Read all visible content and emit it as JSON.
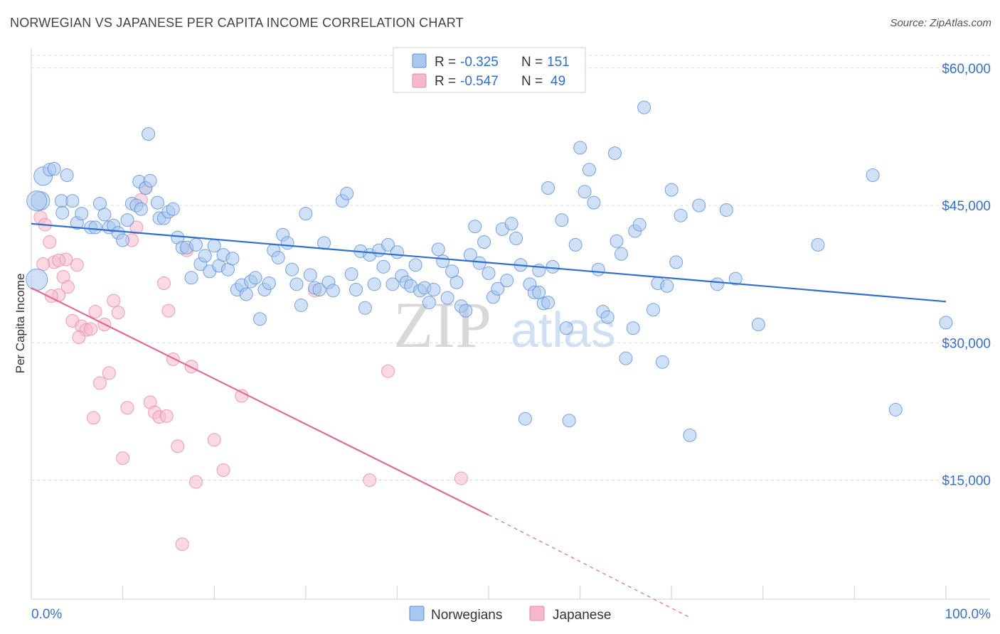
{
  "title": "NORWEGIAN VS JAPANESE PER CAPITA INCOME CORRELATION CHART",
  "source": "Source: ZipAtlas.com",
  "watermark": {
    "zip": "ZIP",
    "atlas": "atlas"
  },
  "legend": {
    "r_label": "R =",
    "n_label": "N =",
    "rows": [
      {
        "r": "-0.325",
        "n": "151",
        "color": "#a9c8f0",
        "stroke": "#5b8fd6"
      },
      {
        "r": "-0.547",
        "n": "49",
        "color": "#f6b9cc",
        "stroke": "#e68aa8"
      }
    ]
  },
  "chart_data": {
    "type": "scatter",
    "title": "NORWEGIAN VS JAPANESE PER CAPITA INCOME CORRELATION CHART",
    "xlabel": "",
    "ylabel": "Per Capita Income",
    "xlim": [
      0,
      100
    ],
    "ylim": [
      2000,
      62000
    ],
    "x_tick_labels": {
      "left": "0.0%",
      "right": "100.0%"
    },
    "y_ticks": [
      {
        "value": 15000,
        "label": "$15,000"
      },
      {
        "value": 30000,
        "label": "$30,000"
      },
      {
        "value": 45000,
        "label": "$45,000"
      },
      {
        "value": 60000,
        "label": "$60,000"
      }
    ],
    "series": [
      {
        "name": "Norwegians",
        "color": "#a9c8f0",
        "stroke": "#5b8fd6",
        "trend": {
          "x": [
            0,
            100
          ],
          "y": [
            43000,
            34500
          ],
          "color": "#2f6fd2"
        },
        "points": [
          [
            1,
            45500
          ],
          [
            1.3,
            48200
          ],
          [
            2,
            48900
          ],
          [
            2.5,
            49000
          ],
          [
            3.3,
            45500
          ],
          [
            3.4,
            44200
          ],
          [
            3.9,
            48300
          ],
          [
            4.5,
            45500
          ],
          [
            5,
            43100
          ],
          [
            5.5,
            44100
          ],
          [
            6.5,
            42600
          ],
          [
            7,
            42600
          ],
          [
            7.5,
            45200
          ],
          [
            8,
            44000
          ],
          [
            8.5,
            42600
          ],
          [
            9,
            42800
          ],
          [
            9.5,
            42000
          ],
          [
            10,
            41200
          ],
          [
            10.5,
            43400
          ],
          [
            11,
            45200
          ],
          [
            11.5,
            45000
          ],
          [
            11.8,
            47600
          ],
          [
            12,
            44600
          ],
          [
            12.5,
            46900
          ],
          [
            12.8,
            52800
          ],
          [
            13,
            47700
          ],
          [
            13.8,
            45300
          ],
          [
            14,
            43600
          ],
          [
            14.5,
            43600
          ],
          [
            15,
            44300
          ],
          [
            15.5,
            44600
          ],
          [
            16,
            41500
          ],
          [
            16.5,
            40400
          ],
          [
            17,
            40400
          ],
          [
            17.5,
            37100
          ],
          [
            18,
            40700
          ],
          [
            18.5,
            38600
          ],
          [
            19,
            39500
          ],
          [
            19.5,
            37800
          ],
          [
            20,
            40600
          ],
          [
            20.5,
            38400
          ],
          [
            21,
            39600
          ],
          [
            21.5,
            38000
          ],
          [
            22,
            39200
          ],
          [
            22.5,
            35800
          ],
          [
            23,
            36300
          ],
          [
            23.5,
            35300
          ],
          [
            24,
            36700
          ],
          [
            24.5,
            37100
          ],
          [
            25,
            32600
          ],
          [
            25.5,
            35800
          ],
          [
            26,
            36500
          ],
          [
            26.5,
            40100
          ],
          [
            27,
            39300
          ],
          [
            27.5,
            41800
          ],
          [
            28,
            40900
          ],
          [
            28.5,
            38000
          ],
          [
            29,
            36400
          ],
          [
            29.5,
            34100
          ],
          [
            30,
            44100
          ],
          [
            30.5,
            37400
          ],
          [
            31,
            36000
          ],
          [
            31.5,
            35800
          ],
          [
            32,
            40900
          ],
          [
            32.5,
            36600
          ],
          [
            33,
            35700
          ],
          [
            34,
            45500
          ],
          [
            34.5,
            46300
          ],
          [
            35,
            37500
          ],
          [
            35.5,
            35800
          ],
          [
            36,
            40000
          ],
          [
            36.5,
            33800
          ],
          [
            37,
            39600
          ],
          [
            37.5,
            36400
          ],
          [
            38,
            40100
          ],
          [
            38.5,
            38300
          ],
          [
            39,
            40700
          ],
          [
            39.5,
            36400
          ],
          [
            40,
            39900
          ],
          [
            40.5,
            37300
          ],
          [
            41,
            36600
          ],
          [
            41.5,
            36200
          ],
          [
            42,
            38500
          ],
          [
            42.5,
            35700
          ],
          [
            43,
            36000
          ],
          [
            43.5,
            34400
          ],
          [
            44,
            35800
          ],
          [
            44.5,
            40200
          ],
          [
            45,
            38900
          ],
          [
            45.5,
            34900
          ],
          [
            46,
            37800
          ],
          [
            46.5,
            36600
          ],
          [
            47,
            34000
          ],
          [
            47.5,
            33500
          ],
          [
            48,
            39600
          ],
          [
            48.5,
            42700
          ],
          [
            49,
            38700
          ],
          [
            49.5,
            41000
          ],
          [
            50,
            37600
          ],
          [
            50.5,
            35000
          ],
          [
            51,
            35900
          ],
          [
            51.5,
            42400
          ],
          [
            52,
            36800
          ],
          [
            52.5,
            43000
          ],
          [
            53,
            41400
          ],
          [
            53.5,
            38500
          ],
          [
            54,
            21700
          ],
          [
            54.5,
            36400
          ],
          [
            55,
            35500
          ],
          [
            55.5,
            37900
          ],
          [
            56,
            34300
          ],
          [
            56.5,
            46900
          ],
          [
            57,
            38300
          ],
          [
            58,
            43400
          ],
          [
            58.5,
            31600
          ],
          [
            59.5,
            40700
          ],
          [
            60,
            51300
          ],
          [
            60.5,
            46500
          ],
          [
            61,
            48900
          ],
          [
            61.5,
            45300
          ],
          [
            62,
            38000
          ],
          [
            62.5,
            33400
          ],
          [
            63,
            32800
          ],
          [
            63.8,
            50700
          ],
          [
            64,
            41100
          ],
          [
            64.5,
            39700
          ],
          [
            65,
            28300
          ],
          [
            65.8,
            31600
          ],
          [
            66,
            42200
          ],
          [
            66.5,
            42900
          ],
          [
            67,
            55700
          ],
          [
            68,
            33600
          ],
          [
            68.5,
            36500
          ],
          [
            69,
            27900
          ],
          [
            69.5,
            36200
          ],
          [
            70,
            46700
          ],
          [
            70.5,
            38800
          ],
          [
            71,
            43900
          ],
          [
            72,
            19900
          ],
          [
            73,
            45000
          ],
          [
            75,
            36400
          ],
          [
            76,
            44500
          ],
          [
            77,
            37000
          ],
          [
            79.5,
            32000
          ],
          [
            86,
            40700
          ],
          [
            92,
            48300
          ],
          [
            94.5,
            22700
          ],
          [
            100,
            32200
          ],
          [
            55.5,
            35500
          ],
          [
            56.5,
            34400
          ],
          [
            58.8,
            21500
          ]
        ]
      },
      {
        "name": "Japanese",
        "color": "#f6b9cc",
        "stroke": "#e68aa8",
        "trend": {
          "x": [
            0,
            50
          ],
          "y": [
            36000,
            11200
          ],
          "dashed_to": {
            "x": 72,
            "y": 0
          },
          "color": "#e06a95"
        },
        "points": [
          [
            1,
            43700
          ],
          [
            1.5,
            42900
          ],
          [
            2,
            41000
          ],
          [
            2.5,
            38800
          ],
          [
            3,
            35200
          ],
          [
            3.5,
            37200
          ],
          [
            4,
            36100
          ],
          [
            4.5,
            32400
          ],
          [
            5,
            38500
          ],
          [
            5.5,
            31800
          ],
          [
            6,
            31400
          ],
          [
            6.5,
            31500
          ],
          [
            7,
            33400
          ],
          [
            7.5,
            25600
          ],
          [
            8,
            32000
          ],
          [
            8.5,
            26700
          ],
          [
            9,
            34600
          ],
          [
            9.5,
            33300
          ],
          [
            10,
            17400
          ],
          [
            10.5,
            22900
          ],
          [
            11,
            41200
          ],
          [
            11.5,
            42600
          ],
          [
            12,
            45600
          ],
          [
            12.5,
            46900
          ],
          [
            13,
            23500
          ],
          [
            13.5,
            22400
          ],
          [
            14,
            21900
          ],
          [
            14.5,
            36500
          ],
          [
            15,
            33500
          ],
          [
            15.5,
            28200
          ],
          [
            16,
            18700
          ],
          [
            16.5,
            8000
          ],
          [
            17,
            40100
          ],
          [
            17.5,
            27400
          ],
          [
            18,
            14800
          ],
          [
            20,
            19400
          ],
          [
            21,
            16100
          ],
          [
            23,
            24200
          ],
          [
            31,
            35700
          ],
          [
            37,
            15000
          ],
          [
            39,
            26900
          ],
          [
            47,
            15200
          ],
          [
            1.3,
            38600
          ],
          [
            2.2,
            35100
          ],
          [
            3.8,
            39100
          ],
          [
            5.2,
            30600
          ],
          [
            6.8,
            21800
          ],
          [
            3,
            39000
          ],
          [
            14.8,
            22000
          ]
        ]
      }
    ]
  },
  "bottom_legend": [
    {
      "label": "Norwegians",
      "color": "#a9c8f0",
      "stroke": "#5b8fd6"
    },
    {
      "label": "Japanese",
      "color": "#f6b9cc",
      "stroke": "#e68aa8"
    }
  ]
}
